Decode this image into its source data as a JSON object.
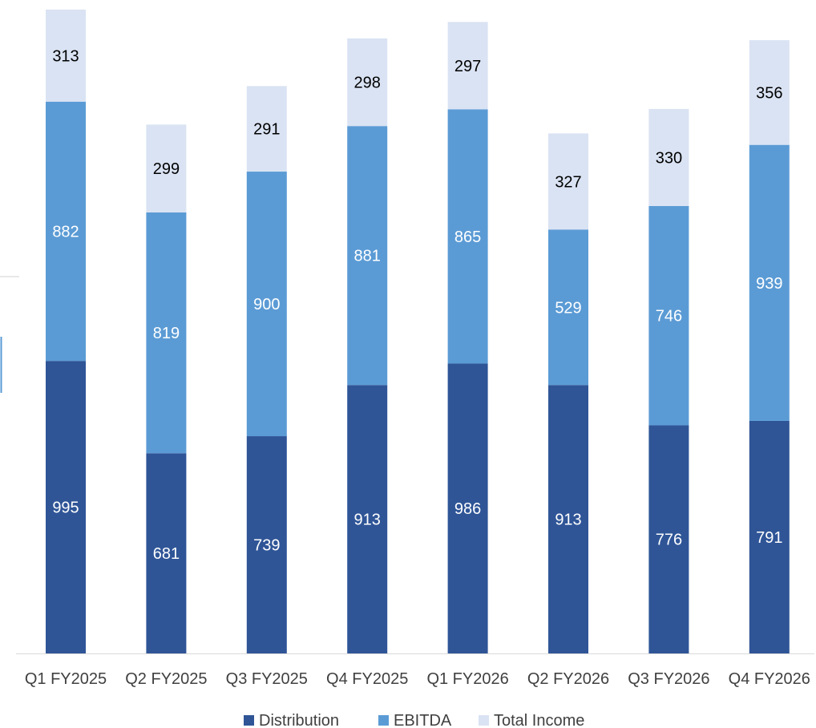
{
  "chart_data": {
    "type": "bar",
    "stacked": true,
    "categories": [
      "Q1 FY2025",
      "Q2 FY2025",
      "Q3 FY2025",
      "Q4 FY2025",
      "Q1 FY2026",
      "Q2 FY2026",
      "Q3 FY2026",
      "Q4 FY2026"
    ],
    "series": [
      {
        "name": "Distribution",
        "values": [
          995,
          681,
          739,
          913,
          986,
          913,
          776,
          791
        ],
        "color": "#2f5597",
        "label_color": "#ffffff"
      },
      {
        "name": "EBITDA",
        "values": [
          882,
          819,
          900,
          881,
          865,
          529,
          746,
          939
        ],
        "color": "#5b9bd5",
        "label_color": "#ffffff"
      },
      {
        "name": "Total Income",
        "values": [
          313,
          299,
          291,
          298,
          297,
          327,
          330,
          356
        ],
        "color": "#dae3f3",
        "label_color": "#000000"
      }
    ],
    "ylim": [
      0,
      2200
    ],
    "grid": false,
    "legend_position": "bottom"
  }
}
